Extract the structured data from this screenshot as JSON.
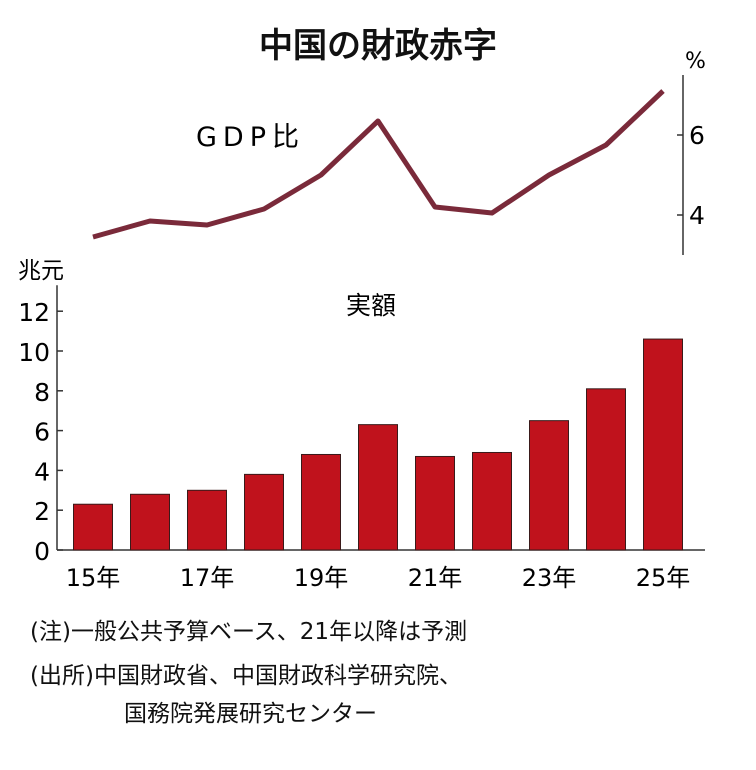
{
  "title": "中国の財政赤字",
  "chart_data": [
    {
      "type": "line",
      "series_label": "GDP比",
      "ylabel": "%",
      "y_axis_side": "right",
      "x": [
        "15年",
        "16年",
        "17年",
        "18年",
        "19年",
        "20年",
        "21年",
        "22年",
        "23年",
        "24年",
        "25年"
      ],
      "values": [
        3.45,
        3.85,
        3.75,
        4.15,
        5.0,
        6.35,
        4.2,
        4.05,
        5.0,
        5.75,
        7.1
      ],
      "yticks": [
        4,
        6
      ],
      "ylim": [
        3.0,
        7.5
      ],
      "color": "#7a2a3a",
      "grid": false
    },
    {
      "type": "bar",
      "series_label": "実額",
      "ylabel": "兆元",
      "categories": [
        "15年",
        "16年",
        "17年",
        "18年",
        "19年",
        "20年",
        "21年",
        "22年",
        "23年",
        "24年",
        "25年"
      ],
      "xtick_labels": [
        "15年",
        "",
        "17年",
        "",
        "19年",
        "",
        "21年",
        "",
        "23年",
        "",
        "25年"
      ],
      "values": [
        2.3,
        2.8,
        3.0,
        3.8,
        4.8,
        6.3,
        4.7,
        4.9,
        6.5,
        8.1,
        10.6
      ],
      "yticks": [
        0,
        2,
        4,
        6,
        8,
        10,
        12
      ],
      "ylim": [
        0,
        13
      ],
      "color": "#c0121c",
      "grid": false
    }
  ],
  "notes": {
    "note": "(注)一般公共予算ベース、21年以降は予測",
    "source_line1": "(出所)中国財政省、中国財政科学研究院、",
    "source_line2": "国務院発展研究センター"
  }
}
